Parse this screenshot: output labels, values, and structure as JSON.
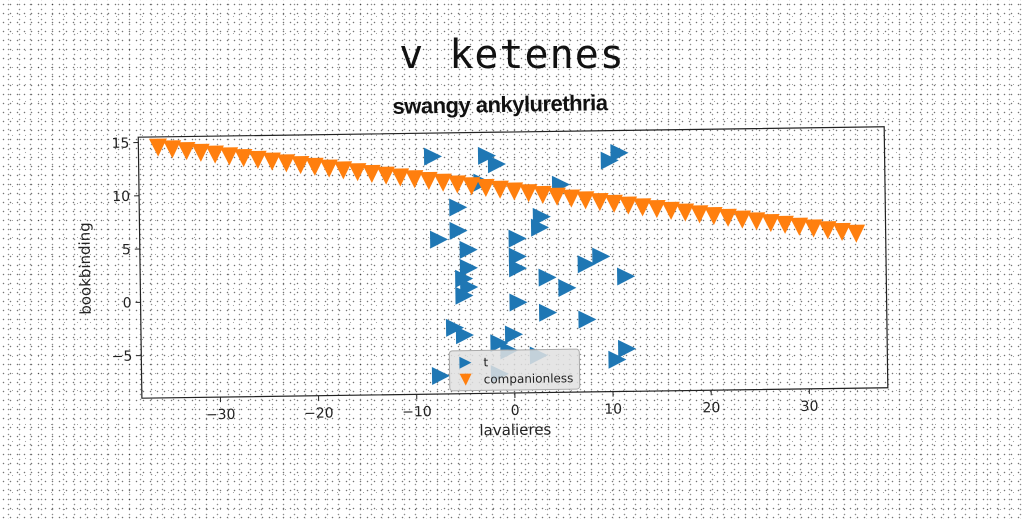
{
  "header": {
    "suptitle": "v ketenes",
    "title": "swangy ankylurethria"
  },
  "chart_data": {
    "type": "scatter",
    "title": "swangy ankylurethria",
    "xlabel": "lavalieres",
    "ylabel": "bookbinding",
    "xlim": [
      -38,
      38
    ],
    "ylim": [
      -9,
      15.5
    ],
    "xticks": [
      -30,
      -20,
      -10,
      0,
      10,
      20,
      30
    ],
    "yticks": [
      -5,
      0,
      5,
      10,
      15
    ],
    "grid": false,
    "legend_position": "bottom-center",
    "series": [
      {
        "name": "t",
        "marker": "triangle-right",
        "color": "#1f77b4",
        "points": [
          [
            -8,
            13.3
          ],
          [
            -2.5,
            13.3
          ],
          [
            -1.5,
            12.5
          ],
          [
            11,
            13.4
          ],
          [
            10,
            12.7
          ],
          [
            5,
            10.5
          ],
          [
            -3,
            10.8
          ],
          [
            -5.5,
            8.5
          ],
          [
            3,
            7.5
          ],
          [
            2.8,
            6.5
          ],
          [
            -5.5,
            6.3
          ],
          [
            -7.5,
            5.5
          ],
          [
            0.5,
            5.5
          ],
          [
            -4.5,
            4.5
          ],
          [
            0.5,
            3.8
          ],
          [
            9,
            3.7
          ],
          [
            7.5,
            3
          ],
          [
            -4.5,
            2.8
          ],
          [
            0.5,
            2.7
          ],
          [
            -5,
            1.8
          ],
          [
            3.5,
            1.8
          ],
          [
            11.5,
            1.8
          ],
          [
            -4.5,
            1
          ],
          [
            5.5,
            0.8
          ],
          [
            -5,
            0.2
          ],
          [
            0.5,
            -0.5
          ],
          [
            3.5,
            -1.5
          ],
          [
            7.5,
            -2.2
          ],
          [
            -6,
            -2.8
          ],
          [
            -5,
            -3.5
          ],
          [
            0,
            -3.5
          ],
          [
            -1.5,
            -4.3
          ],
          [
            -0.5,
            -5
          ],
          [
            11.5,
            -5
          ],
          [
            2.5,
            -5.5
          ],
          [
            10.5,
            -6
          ],
          [
            -7.5,
            -7.3
          ],
          [
            -1.5,
            -7.2
          ]
        ]
      },
      {
        "name": "companionless",
        "marker": "triangle-down",
        "color": "#ff7f0e",
        "x_start": -36,
        "x_end": 35,
        "y_start": 14.5,
        "y_end": 5.5,
        "count": 50
      }
    ]
  }
}
